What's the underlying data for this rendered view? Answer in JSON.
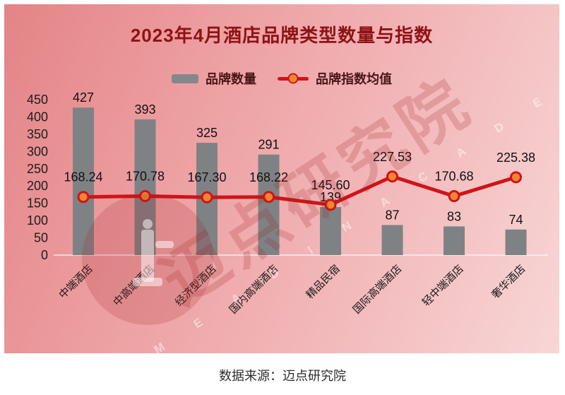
{
  "title": "2023年4月酒店品牌类型数量与指数",
  "legend": [
    {
      "label": "品牌数量",
      "type": "bar",
      "color": "#85888b"
    },
    {
      "label": "品牌指数均值",
      "type": "line",
      "color": "#cf1418",
      "marker_fill": "#ef8630"
    }
  ],
  "watermark": {
    "text": "迈点研究院",
    "subtext": "M E A D I N  A C A D E M Y"
  },
  "footer": {
    "source": "数据来源：迈点研究院"
  },
  "colors": {
    "bar": "#7f8285",
    "line": "#cf1418",
    "marker_fill": "#ef8630",
    "title_red": "#8f1215",
    "axis_text": "#1d1d1d",
    "background_dark": "#e48487",
    "background_light": "#f8d6d6"
  },
  "chart_data": {
    "type": "bar",
    "title": "2023年4月酒店品牌类型数量与指数",
    "categories": [
      "中端酒店",
      "中高端酒店",
      "经济型酒店",
      "国内高端酒店",
      "精品民宿",
      "国际高端酒店",
      "轻中端酒店",
      "奢华酒店"
    ],
    "series": [
      {
        "name": "品牌数量",
        "type": "bar",
        "color": "#7f8285",
        "values": [
          427,
          393,
          325,
          291,
          139,
          87,
          83,
          74
        ]
      },
      {
        "name": "品牌指数均值",
        "type": "line",
        "color": "#cf1418",
        "marker_fill": "#ef8630",
        "values": [
          168.24,
          170.78,
          167.3,
          168.22,
          145.6,
          227.53,
          170.68,
          225.38
        ],
        "labels": [
          "168.24",
          "170.78",
          "167.30",
          "168.22",
          "145.60",
          "227.53",
          "170.68",
          "225.38"
        ]
      }
    ],
    "xlabel": "",
    "ylabel": "",
    "ylim": [
      0,
      450
    ],
    "ytick_step": 50,
    "grid": false,
    "legend_position": "top",
    "source_note": "数据来源：迈点研究院"
  }
}
